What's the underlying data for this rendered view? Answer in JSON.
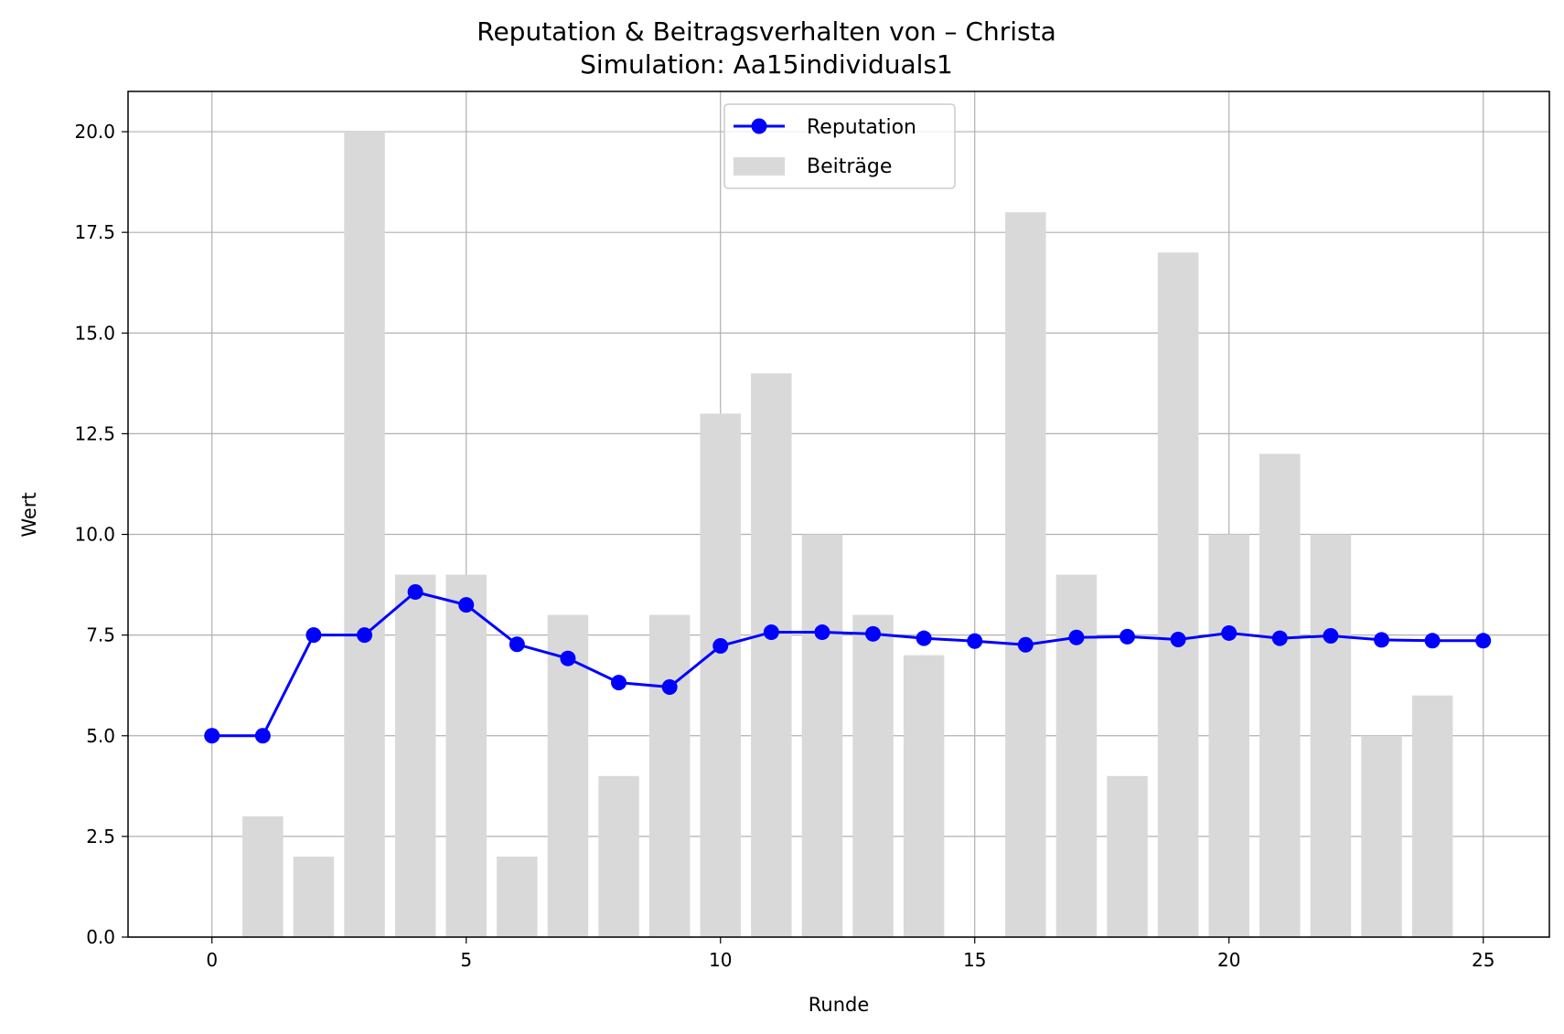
{
  "chart_data": {
    "type": "bar+line",
    "title": "Reputation & Beitragsverhalten von – Christa",
    "subtitle": "Simulation: Aa15individuals1",
    "xlabel": "Runde",
    "ylabel": "Wert",
    "xlim": [
      -1.65,
      26.3
    ],
    "ylim": [
      0,
      21
    ],
    "xticks": [
      0,
      5,
      10,
      15,
      20,
      25
    ],
    "yticks": [
      0,
      2.5,
      5,
      7.5,
      10,
      12.5,
      15,
      17.5,
      20
    ],
    "xtick_labels": [
      "0",
      "5",
      "10",
      "15",
      "20",
      "25"
    ],
    "ytick_labels": [
      "0.0",
      "2.5",
      "5.0",
      "7.5",
      "10.0",
      "12.5",
      "15.0",
      "17.5",
      "20.0"
    ],
    "grid": true,
    "legend_position": "top-center",
    "legend": {
      "reputation_label": "Reputation",
      "contributions_label": "Beiträge"
    },
    "bars": {
      "name": "Beiträge",
      "color": "#d9d9d9",
      "x": [
        0,
        1,
        2,
        3,
        4,
        5,
        6,
        7,
        8,
        9,
        10,
        11,
        12,
        13,
        14,
        15,
        16,
        17,
        18,
        19,
        20,
        21,
        22,
        23,
        24,
        25
      ],
      "values": [
        0,
        3,
        2,
        20,
        9,
        9,
        2,
        8,
        4,
        8,
        13,
        14,
        10,
        8,
        7,
        0,
        18,
        9,
        4,
        17,
        10,
        12,
        10,
        5,
        6,
        0
      ]
    },
    "line": {
      "name": "Reputation",
      "color": "#0000ff",
      "x": [
        0,
        1,
        2,
        3,
        4,
        5,
        6,
        7,
        8,
        9,
        10,
        11,
        12,
        13,
        14,
        15,
        16,
        17,
        18,
        19,
        20,
        21,
        22,
        23,
        24,
        25
      ],
      "values": [
        5.0,
        5.0,
        7.5,
        7.5,
        8.57,
        8.25,
        7.27,
        6.92,
        6.32,
        6.21,
        7.23,
        7.57,
        7.57,
        7.53,
        7.42,
        7.35,
        7.26,
        7.44,
        7.46,
        7.39,
        7.55,
        7.42,
        7.48,
        7.38,
        7.36,
        7.36
      ]
    }
  }
}
